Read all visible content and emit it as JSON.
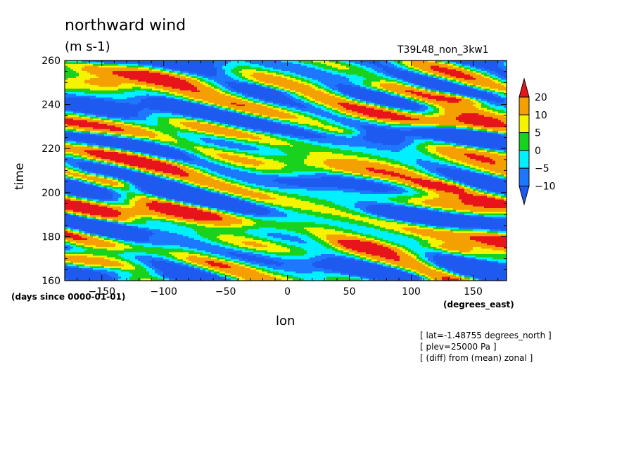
{
  "header": {
    "title": "northward wind",
    "units": "(m s-1)",
    "run_id": "T39L48_non_3kw1"
  },
  "notes": [
    "[ lat=-1.48755 degrees_north ]",
    "[ plev=25000 Pa ]",
    "[ (diff) from (mean) zonal ]"
  ],
  "chart_data": {
    "type": "heatmap",
    "title": "northward wind",
    "xlabel": "lon",
    "ylabel": "time",
    "x_units": "(degrees_east)",
    "y_units": "(days since 0000-01-01)",
    "xlim": [
      -180,
      177
    ],
    "ylim": [
      160,
      260
    ],
    "x_ticks": [
      -150,
      -100,
      -50,
      0,
      50,
      100,
      150
    ],
    "y_ticks": [
      160,
      180,
      200,
      220,
      240,
      260
    ],
    "grid": false,
    "colorbar": {
      "placement": "right",
      "levels": [
        20,
        10,
        5,
        0,
        -5,
        -10
      ],
      "colors": [
        "#e8141c",
        "#f4a000",
        "#f4f400",
        "#19d21e",
        "#00f0ff",
        "#1e78ff"
      ],
      "under_color": "#1e5af0",
      "over_color": "#e8141c"
    },
    "features": [
      {
        "lon": 140,
        "time": 243,
        "value": 20
      },
      {
        "lon": 125,
        "time": 203,
        "value": 20
      },
      {
        "lon": 165,
        "time": 196,
        "value": 20
      },
      {
        "lon": -140,
        "time": 205,
        "value": 10
      },
      {
        "lon": 45,
        "time": 228,
        "value": 10
      },
      {
        "lon": 120,
        "time": 232,
        "value": 10
      },
      {
        "lon": -150,
        "time": 250,
        "value": 10
      },
      {
        "lon": -110,
        "time": 180,
        "value": 10
      },
      {
        "lon": 130,
        "time": 175,
        "value": 10
      },
      {
        "lon": -60,
        "time": 168,
        "value": 10
      },
      {
        "lon": 60,
        "time": 176,
        "value": 20
      },
      {
        "lon": -90,
        "time": 240,
        "value": -10
      },
      {
        "lon": 75,
        "time": 225,
        "value": -10
      },
      {
        "lon": -160,
        "time": 210,
        "value": -10
      },
      {
        "lon": -120,
        "time": 188,
        "value": -10
      },
      {
        "lon": 10,
        "time": 205,
        "value": -10
      },
      {
        "lon": 90,
        "time": 190,
        "value": -10
      },
      {
        "lon": -20,
        "time": 247,
        "value": -10
      },
      {
        "lon": 60,
        "time": 252,
        "value": -10
      },
      {
        "lon": -140,
        "time": 165,
        "value": -10
      },
      {
        "lon": 100,
        "time": 162,
        "value": -10
      }
    ]
  }
}
